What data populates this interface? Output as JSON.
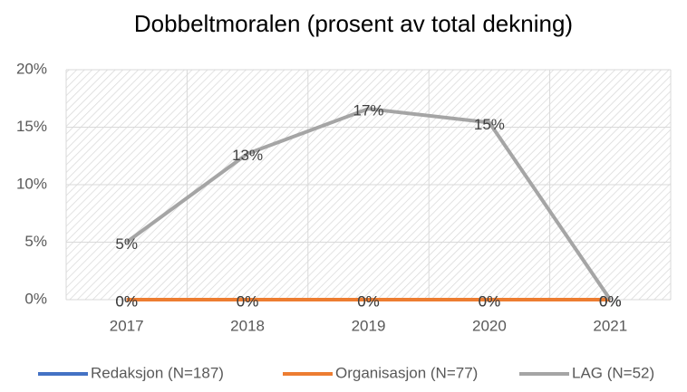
{
  "chart_data": {
    "type": "line",
    "title": "Dobbeltmoralen (prosent av total dekning)",
    "categories": [
      "2017",
      "2018",
      "2019",
      "2020",
      "2021"
    ],
    "series": [
      {
        "name": "Redaksjon (N=187)",
        "color": "#4472c4",
        "values": [
          0,
          0,
          0,
          0,
          0
        ],
        "value_labels": [
          "0%",
          "0%",
          "0%",
          "0%",
          "0%"
        ]
      },
      {
        "name": "Organisasjon (N=77)",
        "color": "#ed7d31",
        "values": [
          0,
          0,
          0,
          0,
          0
        ],
        "value_labels": [
          "0%",
          "0%",
          "0%",
          "0%",
          "0%"
        ]
      },
      {
        "name": "LAG (N=52)",
        "color": "#a5a5a5",
        "values": [
          5,
          12.7,
          16.6,
          15.4,
          0
        ],
        "value_labels": [
          "5%",
          "13%",
          "17%",
          "15%",
          "0%"
        ]
      }
    ],
    "ylim": [
      0,
      20
    ],
    "yticks": [
      {
        "value": 0,
        "label": "0%"
      },
      {
        "value": 5,
        "label": "5%"
      },
      {
        "value": 10,
        "label": "10%"
      },
      {
        "value": 15,
        "label": "15%"
      },
      {
        "value": 20,
        "label": "20%"
      }
    ],
    "grid": true,
    "legend": "bottom"
  }
}
